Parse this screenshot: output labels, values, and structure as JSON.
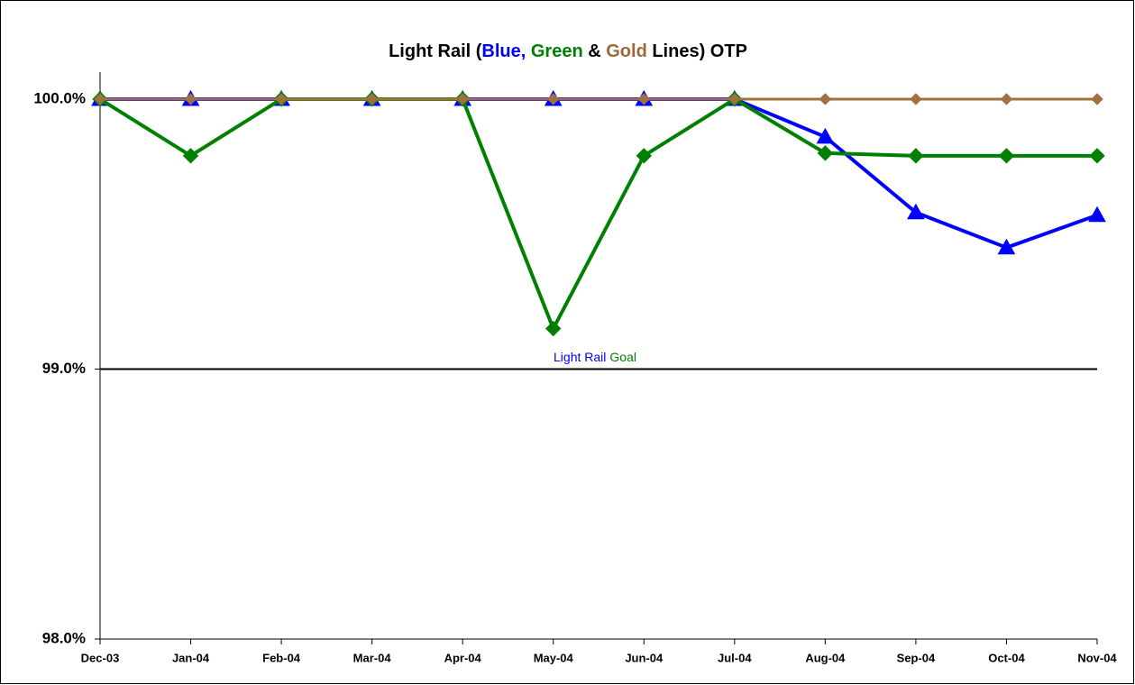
{
  "chart_data": {
    "type": "line",
    "title_parts": [
      {
        "text": "Light Rail (",
        "color": "#000000"
      },
      {
        "text": "Blue,",
        "color": "#0000ff"
      },
      {
        "text": " Green",
        "color": "#008000"
      },
      {
        "text": " & ",
        "color": "#000000"
      },
      {
        "text": "Gold",
        "color": "#9c6a3a"
      },
      {
        "text": " Lines) OTP",
        "color": "#000000"
      }
    ],
    "categories": [
      "Dec-03",
      "Jan-04",
      "Feb-04",
      "Mar-04",
      "Apr-04",
      "May-04",
      "Jun-04",
      "Jul-04",
      "Aug-04",
      "Sep-04",
      "Oct-04",
      "Nov-04"
    ],
    "series": [
      {
        "color": "#0000ff",
        "marker": "triangle",
        "values": [
          100,
          100,
          100,
          100,
          100,
          100,
          100,
          100,
          99.86,
          99.58,
          99.45,
          99.57
        ]
      },
      {
        "color": "#008000",
        "marker": "diamond",
        "values": [
          100,
          99.79,
          100,
          100,
          100,
          99.15,
          99.79,
          100,
          99.8,
          99.79,
          99.79,
          99.79
        ]
      },
      {
        "color": "#a0703f",
        "marker": "small-diamond",
        "values": [
          100,
          100,
          100,
          100,
          100,
          100,
          100,
          100,
          100,
          100,
          100,
          100
        ]
      }
    ],
    "goal": 99,
    "goal_labels": [
      {
        "text": "Light Rail",
        "color": "#0000ff"
      },
      {
        "text": "Goal",
        "color": "#008000"
      }
    ],
    "ylim": [
      98,
      100.1
    ],
    "yticks": [
      {
        "value": 98,
        "label": "98.0%"
      },
      {
        "value": 99,
        "label": "99.0%"
      },
      {
        "value": 100,
        "label": "100.0%"
      }
    ]
  }
}
